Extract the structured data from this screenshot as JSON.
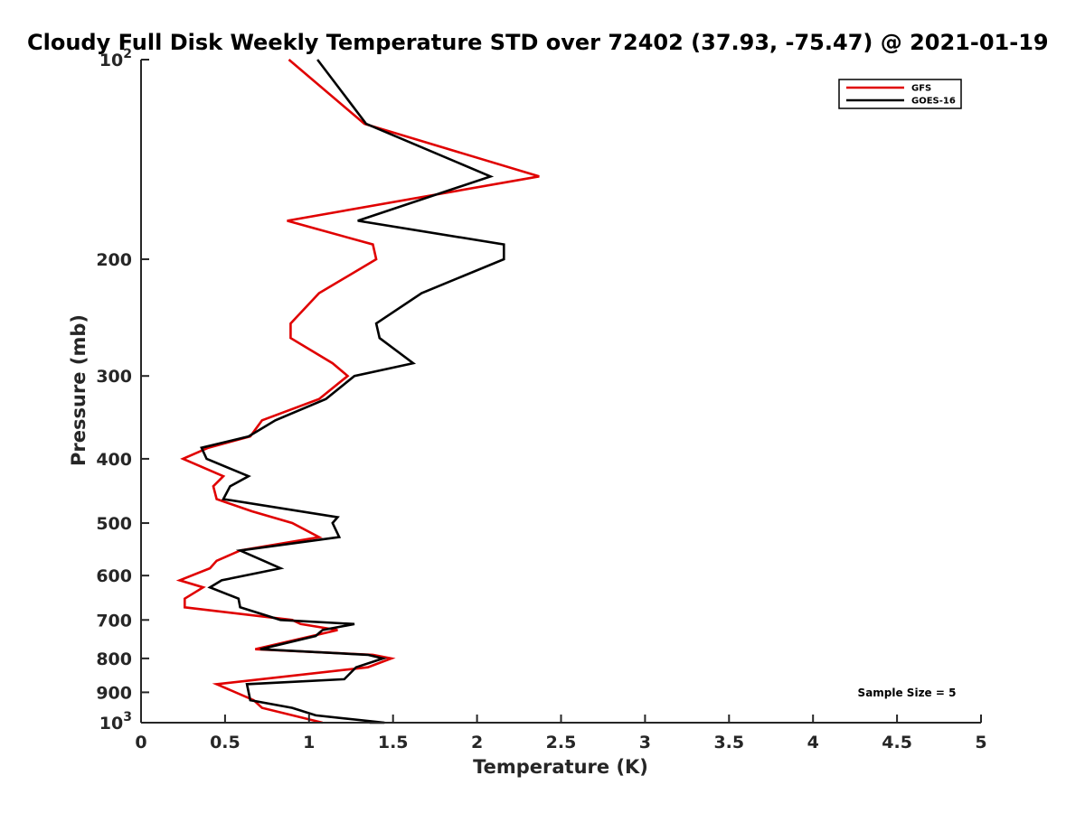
{
  "chart_data": {
    "type": "line",
    "title": "Cloudy Full Disk Weekly Temperature STD over 72402 (37.93, -75.47) @ 2021-01-19",
    "xlabel": "Temperature (K)",
    "ylabel": "Pressure (mb)",
    "xlim": [
      0,
      5
    ],
    "ylim": [
      100,
      1000
    ],
    "y_scale": "log",
    "y_reversed": true,
    "x_ticks": [
      "0",
      "0.5",
      "1",
      "1.5",
      "2",
      "2.5",
      "3",
      "3.5",
      "4",
      "4.5",
      "5"
    ],
    "y_ticks": [
      {
        "value": 100,
        "label": "10",
        "sup": "2"
      },
      {
        "value": 200,
        "label": "200"
      },
      {
        "value": 300,
        "label": "300"
      },
      {
        "value": 400,
        "label": "400"
      },
      {
        "value": 500,
        "label": "500"
      },
      {
        "value": 600,
        "label": "600"
      },
      {
        "value": 700,
        "label": "700"
      },
      {
        "value": 800,
        "label": "800"
      },
      {
        "value": 900,
        "label": "900"
      },
      {
        "value": 1000,
        "label": "10",
        "sup": "3"
      }
    ],
    "legend_position": "top-right",
    "grid": false,
    "annotation": "Sample Size = 5",
    "series": [
      {
        "name": "GFS",
        "color": "#e00000",
        "points": [
          [
            0.88,
            100
          ],
          [
            1.33,
            125
          ],
          [
            2.37,
            150
          ],
          [
            0.87,
            175
          ],
          [
            1.38,
            190
          ],
          [
            1.4,
            200
          ],
          [
            1.06,
            225
          ],
          [
            0.89,
            250
          ],
          [
            0.89,
            263
          ],
          [
            1.14,
            287
          ],
          [
            1.23,
            300
          ],
          [
            1.06,
            325
          ],
          [
            0.72,
            350
          ],
          [
            0.65,
            370
          ],
          [
            0.4,
            385
          ],
          [
            0.25,
            400
          ],
          [
            0.49,
            425
          ],
          [
            0.43,
            440
          ],
          [
            0.45,
            460
          ],
          [
            0.66,
            480
          ],
          [
            0.9,
            500
          ],
          [
            1.06,
            525
          ],
          [
            0.59,
            550
          ],
          [
            0.45,
            570
          ],
          [
            0.41,
            585
          ],
          [
            0.23,
            610
          ],
          [
            0.37,
            625
          ],
          [
            0.26,
            650
          ],
          [
            0.26,
            670
          ],
          [
            0.9,
            700
          ],
          [
            0.95,
            710
          ],
          [
            1.17,
            725
          ],
          [
            0.68,
            775
          ],
          [
            1.38,
            790
          ],
          [
            1.49,
            800
          ],
          [
            1.35,
            825
          ],
          [
            0.45,
            875
          ],
          [
            0.67,
            925
          ],
          [
            0.72,
            950
          ],
          [
            1.08,
            1000
          ]
        ]
      },
      {
        "name": "GOES-16",
        "color": "#000000",
        "points": [
          [
            1.05,
            100
          ],
          [
            1.34,
            125
          ],
          [
            2.08,
            150
          ],
          [
            1.29,
            175
          ],
          [
            2.16,
            190
          ],
          [
            2.16,
            200
          ],
          [
            1.67,
            225
          ],
          [
            1.4,
            250
          ],
          [
            1.42,
            263
          ],
          [
            1.62,
            287
          ],
          [
            1.27,
            300
          ],
          [
            1.1,
            325
          ],
          [
            0.8,
            350
          ],
          [
            0.64,
            370
          ],
          [
            0.36,
            385
          ],
          [
            0.39,
            400
          ],
          [
            0.64,
            425
          ],
          [
            0.53,
            440
          ],
          [
            0.49,
            460
          ],
          [
            1.17,
            490
          ],
          [
            1.14,
            500
          ],
          [
            1.18,
            525
          ],
          [
            0.59,
            550
          ],
          [
            0.73,
            570
          ],
          [
            0.83,
            585
          ],
          [
            0.48,
            610
          ],
          [
            0.41,
            625
          ],
          [
            0.58,
            650
          ],
          [
            0.59,
            670
          ],
          [
            0.83,
            700
          ],
          [
            1.27,
            710
          ],
          [
            1.08,
            725
          ],
          [
            1.04,
            740
          ],
          [
            0.71,
            775
          ],
          [
            1.35,
            790
          ],
          [
            1.44,
            800
          ],
          [
            1.28,
            825
          ],
          [
            1.21,
            860
          ],
          [
            0.63,
            875
          ],
          [
            0.65,
            925
          ],
          [
            0.9,
            950
          ],
          [
            1.04,
            975
          ],
          [
            1.45,
            1000
          ],
          [
            1.36,
            1000
          ]
        ]
      }
    ]
  }
}
